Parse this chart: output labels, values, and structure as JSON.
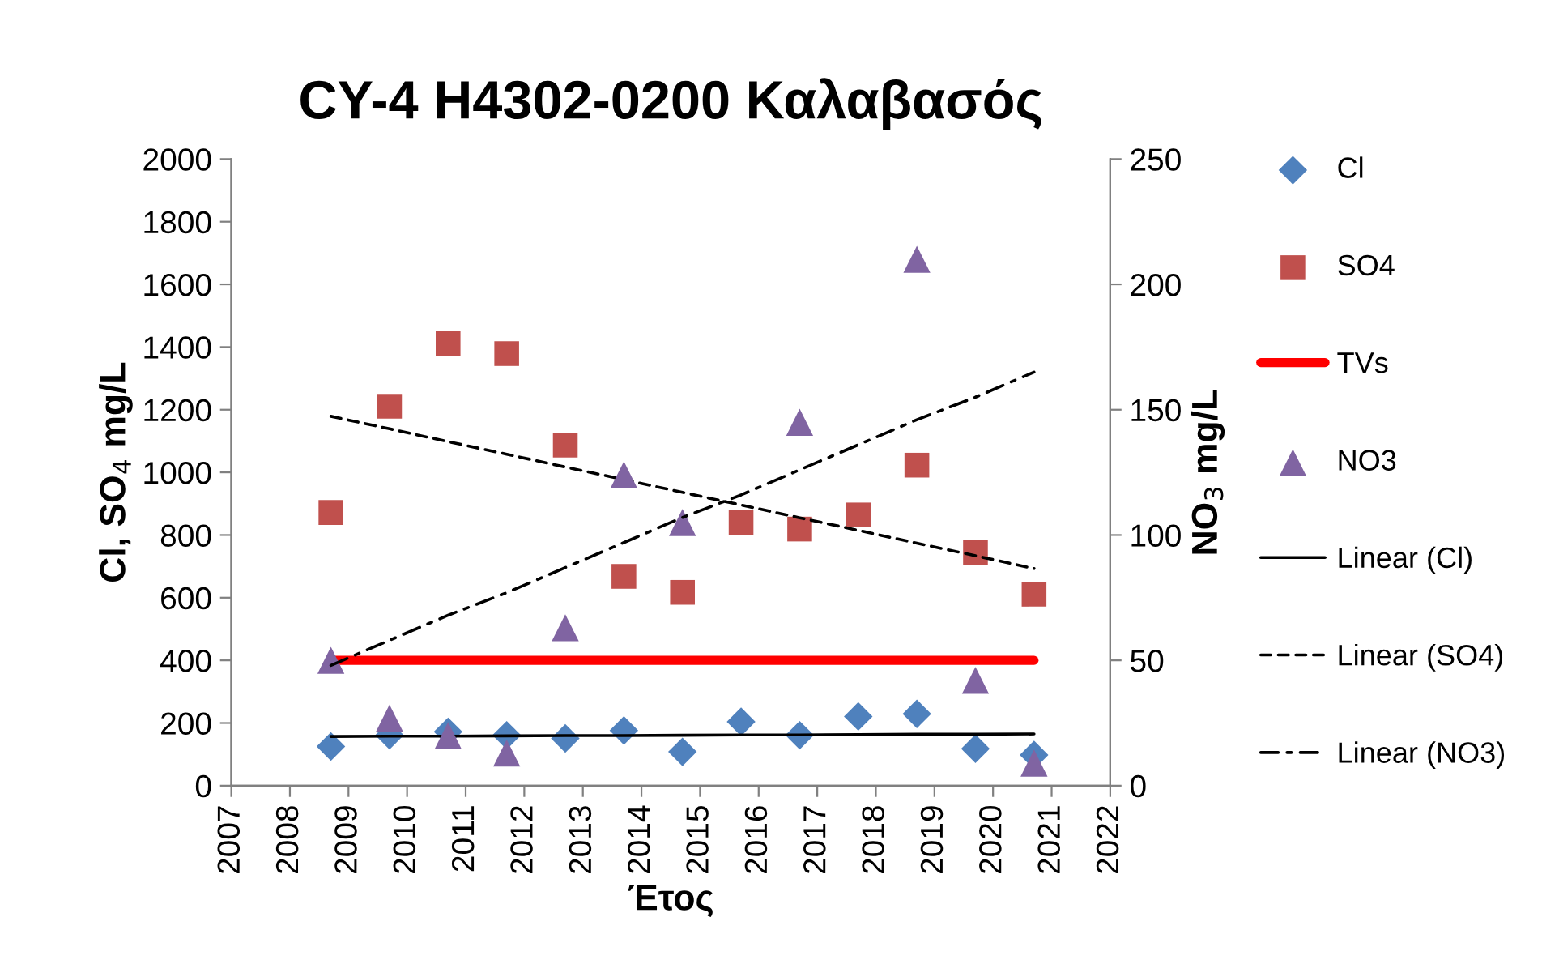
{
  "chart_data": {
    "type": "scatter",
    "title": "CY-4 H4302-0200 Καλαβασός",
    "xlabel": "Έτος",
    "ylabel": "Cl, SO$_{4}$ mg/L",
    "y2label": "NO$_{3}$ mg/L",
    "x": [
      2008.7,
      2009.7,
      2010.7,
      2011.7,
      2012.7,
      2013.7,
      2014.7,
      2015.7,
      2016.7,
      2017.7,
      2018.7,
      2019.7,
      2020.7
    ],
    "series": [
      {
        "name": "Cl",
        "marker": "diamond",
        "color": "#4f81bd",
        "values": [
          125,
          161,
          172,
          161,
          151,
          176,
          108,
          204,
          161,
          221,
          229,
          118,
          98
        ]
      },
      {
        "name": "SO4",
        "marker": "square",
        "color": "#c0504d",
        "values": [
          872,
          1211,
          1412,
          1379,
          1087,
          668,
          617,
          840,
          819,
          864,
          1023,
          744,
          611
        ]
      },
      {
        "name": "TVs",
        "type": "line",
        "marker": "none",
        "color": "#ff0000",
        "values": [
          400,
          400,
          400,
          400,
          400,
          400,
          400,
          400,
          400,
          400,
          400,
          400,
          400
        ]
      },
      {
        "name": "NO3",
        "marker": "triangle",
        "color": "#8064a2",
        "axis": "y2",
        "values": [
          50,
          27,
          20,
          13,
          63,
          124,
          105,
          null,
          145,
          null,
          210,
          42,
          9
        ]
      },
      {
        "name": "Linear (Cl)",
        "type": "line",
        "marker": "none",
        "line_style": "solid",
        "color": "#000000",
        "values": [
          157,
          158,
          158,
          159,
          160,
          160,
          161,
          162,
          162,
          163,
          164,
          164,
          165
        ]
      },
      {
        "name": "Linear (SO4)",
        "type": "line",
        "marker": "none",
        "line_style": "dashed",
        "color": "#000000",
        "values": [
          1179,
          1139,
          1098,
          1058,
          1017,
          977,
          936,
          896,
          855,
          815,
          774,
          734,
          693
        ]
      },
      {
        "name": "Linear (NO3)",
        "type": "line",
        "marker": "none",
        "line_style": "dashdot",
        "color": "#000000",
        "axis": "y2",
        "values": [
          48,
          58,
          68,
          77,
          87,
          97,
          107,
          116,
          126,
          136,
          146,
          155,
          165
        ]
      }
    ],
    "xlim": [
      2007,
      2022
    ],
    "xticks": [
      2007,
      2008,
      2009,
      2010,
      2011,
      2012,
      2013,
      2014,
      2015,
      2016,
      2017,
      2018,
      2019,
      2020,
      2021,
      2022
    ],
    "ylim": [
      0,
      2000
    ],
    "yticks": [
      0,
      200,
      400,
      600,
      800,
      1000,
      1200,
      1400,
      1600,
      1800,
      2000
    ],
    "y2lim": [
      0,
      250
    ],
    "y2ticks": [
      0,
      50,
      100,
      150,
      200,
      250
    ],
    "grid": false,
    "legend": "right"
  }
}
